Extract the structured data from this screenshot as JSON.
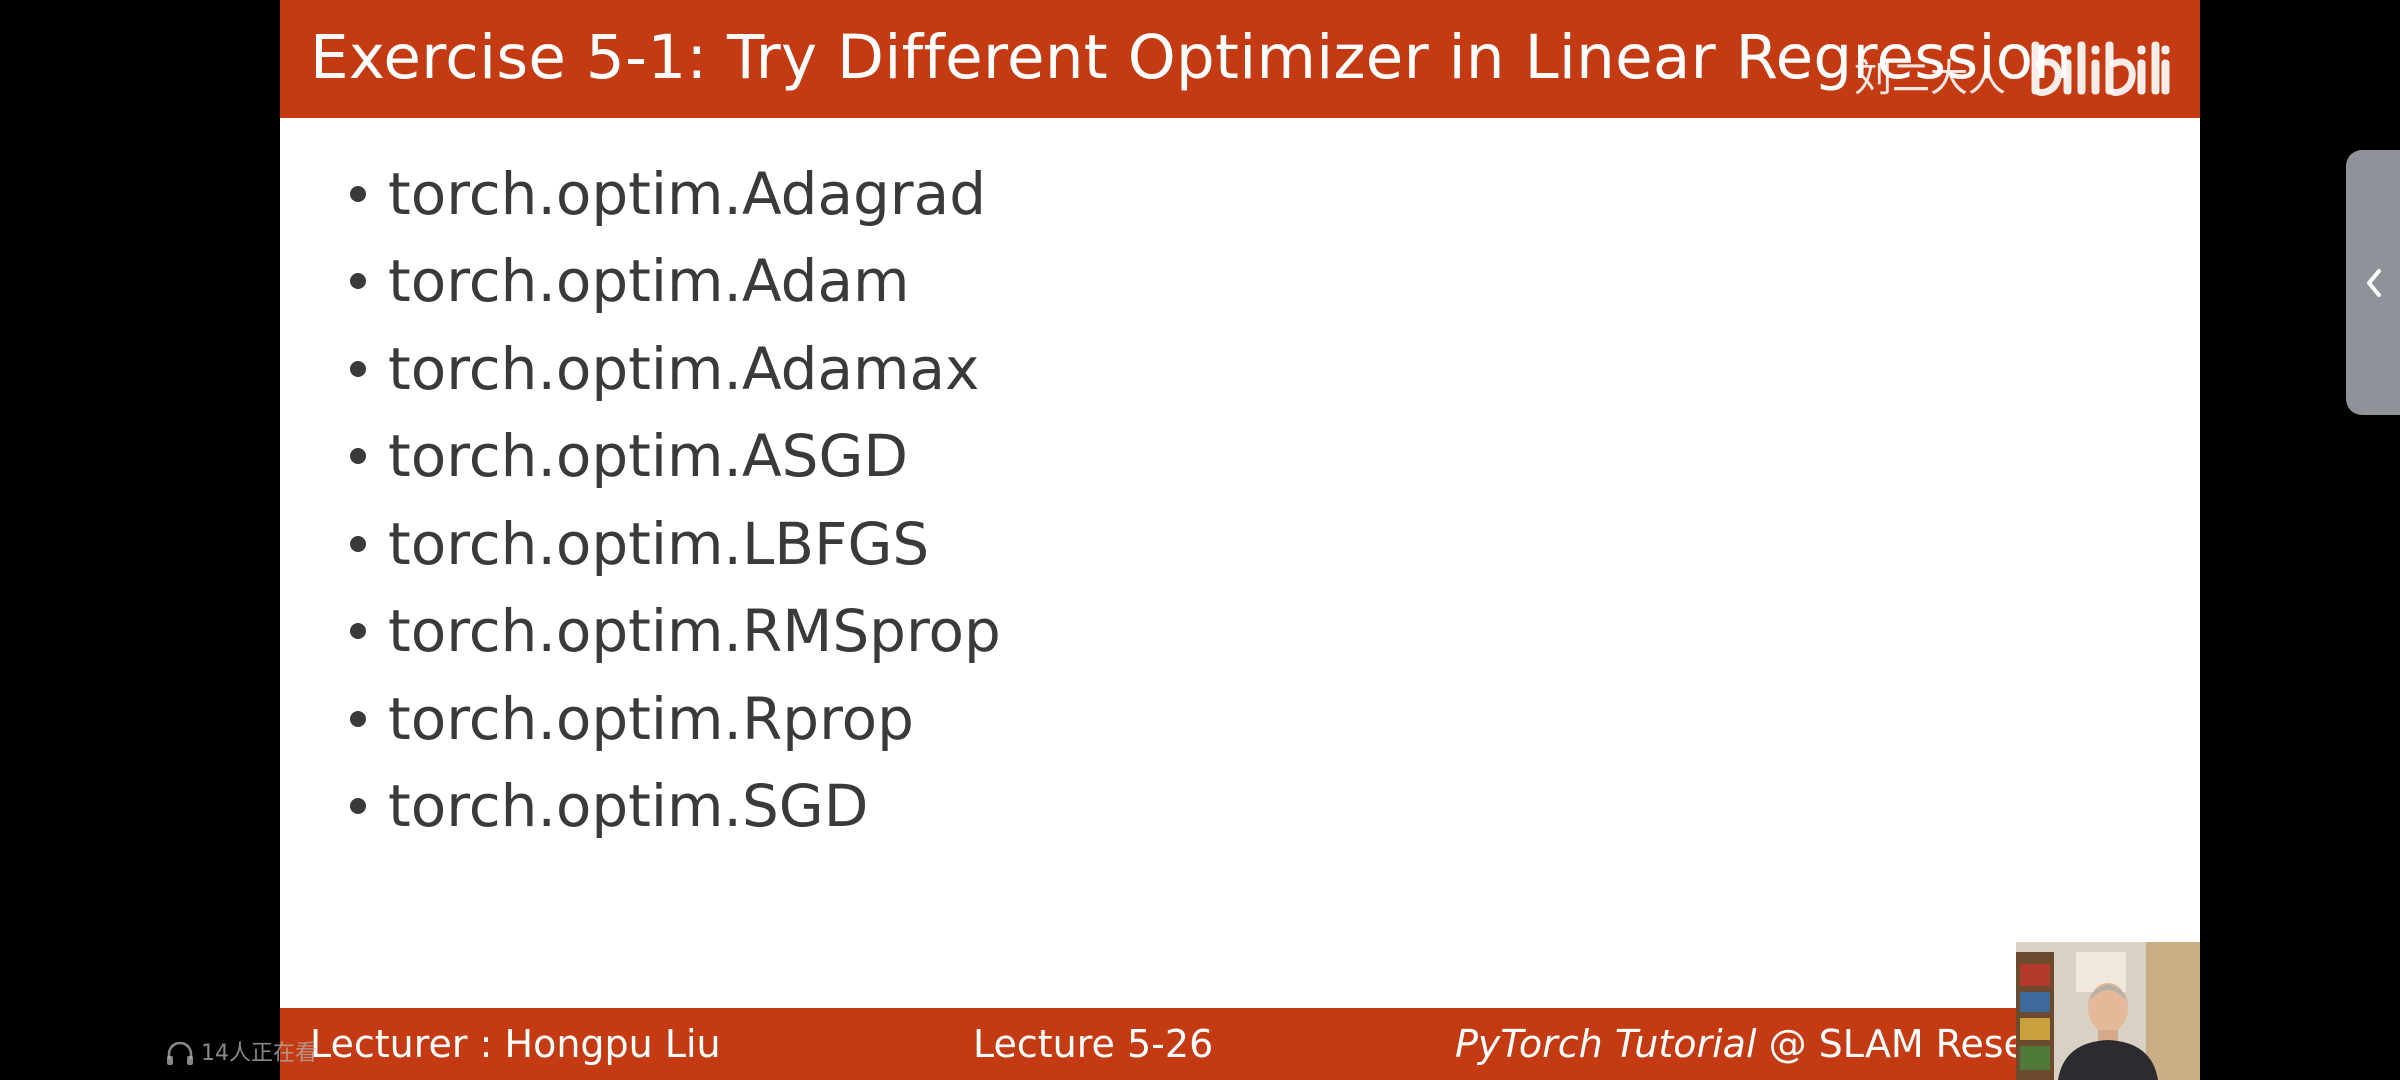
{
  "slide": {
    "title": "Exercise 5-1: Try Different Optimizer in Linear Regression",
    "watermark": {
      "name": "刘二大人",
      "logo_text": "bilibili"
    },
    "bullets": [
      "torch.optim.Adagrad",
      "torch.optim.Adam",
      "torch.optim.Adamax",
      "torch.optim.ASGD",
      "torch.optim.LBFGS",
      "torch.optim.RMSprop",
      "torch.optim.Rprop",
      "torch.optim.SGD"
    ],
    "footer": {
      "lecturer": "Lecturer : Hongpu Liu",
      "lecture_number": "Lecture 5-26",
      "credit_italic": "PyTorch Tutorial",
      "credit_rest": " @ SLAM Resear"
    }
  },
  "player": {
    "viewer_count": "14人正在看",
    "side_panel_icon": "chevron-left-icon",
    "viewer_icon": "headphones-icon"
  },
  "colors": {
    "header_footer": "#c43a12",
    "slide_text": "#3a3a3a",
    "background": "#000000",
    "side_tab": "#8e9399"
  }
}
